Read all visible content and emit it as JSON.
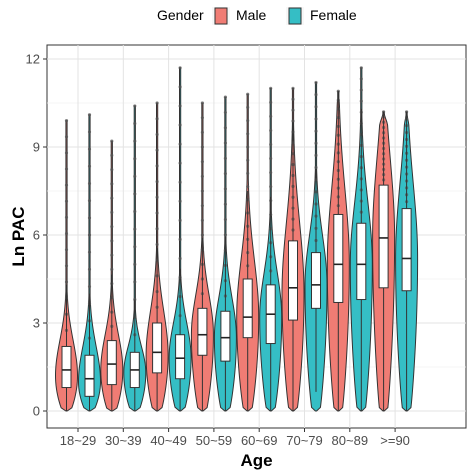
{
  "chart_data": {
    "type": "violin",
    "xlabel": "Age",
    "ylabel": "Ln PAC",
    "ylim": [
      0,
      12
    ],
    "yticks": [
      0,
      3,
      6,
      9,
      12
    ],
    "categories": [
      "18~29",
      "30~39",
      "40~49",
      "50~59",
      "60~69",
      "70~79",
      "80~89",
      ">=90"
    ],
    "grid": true,
    "legend": {
      "title": "Gender",
      "position": "top",
      "entries": [
        {
          "name": "Male",
          "color": "#F07C74"
        },
        {
          "name": "Female",
          "color": "#35BEC5"
        }
      ]
    },
    "series": [
      {
        "name": "Male",
        "color": "#F07C74",
        "stats": [
          {
            "min": 0.0,
            "q1": 0.8,
            "median": 1.4,
            "q3": 2.2,
            "max": 9.9,
            "mode": 1.2
          },
          {
            "min": 0.0,
            "q1": 0.9,
            "median": 1.6,
            "q3": 2.4,
            "max": 9.2,
            "mode": 1.4
          },
          {
            "min": 0.0,
            "q1": 1.3,
            "median": 2.0,
            "q3": 3.0,
            "max": 10.5,
            "mode": 1.9
          },
          {
            "min": 0.0,
            "q1": 1.9,
            "median": 2.6,
            "q3": 3.5,
            "max": 10.5,
            "mode": 2.6
          },
          {
            "min": 0.0,
            "q1": 2.5,
            "median": 3.2,
            "q3": 4.5,
            "max": 10.8,
            "mode": 3.2
          },
          {
            "min": 0.0,
            "q1": 3.1,
            "median": 4.2,
            "q3": 5.8,
            "max": 11.0,
            "mode": 4.0
          },
          {
            "min": 0.0,
            "q1": 3.7,
            "median": 5.0,
            "q3": 6.7,
            "max": 10.9,
            "mode": 5.0
          },
          {
            "min": 0.0,
            "q1": 4.2,
            "median": 5.9,
            "q3": 7.7,
            "max": 10.2,
            "mode": 5.9
          }
        ]
      },
      {
        "name": "Female",
        "color": "#35BEC5",
        "stats": [
          {
            "min": 0.0,
            "q1": 0.5,
            "median": 1.1,
            "q3": 1.9,
            "max": 10.1,
            "mode": 1.0
          },
          {
            "min": 0.0,
            "q1": 0.8,
            "median": 1.4,
            "q3": 2.0,
            "max": 10.4,
            "mode": 1.3
          },
          {
            "min": 0.0,
            "q1": 1.1,
            "median": 1.8,
            "q3": 2.6,
            "max": 11.7,
            "mode": 1.8
          },
          {
            "min": 0.0,
            "q1": 1.7,
            "median": 2.5,
            "q3": 3.4,
            "max": 10.7,
            "mode": 2.5
          },
          {
            "min": 0.0,
            "q1": 2.3,
            "median": 3.3,
            "q3": 4.3,
            "max": 11.0,
            "mode": 3.2
          },
          {
            "min": 0.0,
            "q1": 3.5,
            "median": 4.3,
            "q3": 5.4,
            "max": 11.2,
            "mode": 4.3
          },
          {
            "min": 0.0,
            "q1": 3.8,
            "median": 5.0,
            "q3": 6.4,
            "max": 11.7,
            "mode": 5.0
          },
          {
            "min": 0.0,
            "q1": 4.1,
            "median": 5.2,
            "q3": 6.9,
            "max": 10.2,
            "mode": 5.2
          }
        ]
      }
    ]
  }
}
